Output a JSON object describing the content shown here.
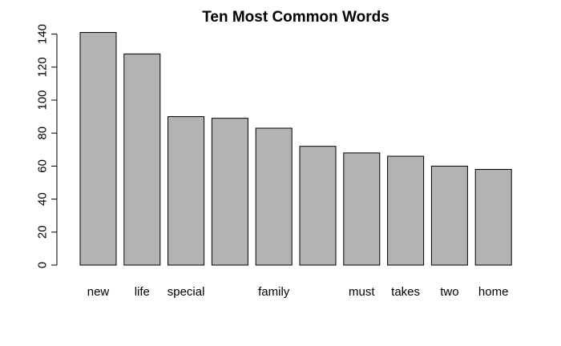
{
  "chart_data": {
    "type": "bar",
    "title": "Ten Most Common Words",
    "xlabel": "",
    "ylabel": "",
    "categories": [
      "new",
      "life",
      "special",
      "",
      "family",
      "",
      "must",
      "takes",
      "two",
      "home"
    ],
    "values": [
      141,
      128,
      90,
      89,
      83,
      72,
      68,
      66,
      60,
      58
    ],
    "ylim": [
      0,
      140
    ],
    "yticks": [
      0,
      20,
      40,
      60,
      80,
      100,
      120,
      140
    ],
    "ytick_labels": [
      "0",
      "20",
      "40",
      "60",
      "80",
      "100",
      "120",
      "140"
    ],
    "bar_color": "#b3b3b3",
    "bar_border_color": "#000000",
    "grid": false,
    "legend": "none"
  }
}
